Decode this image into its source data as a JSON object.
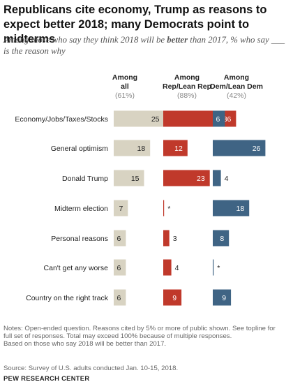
{
  "title": "Republicans cite economy, Trump as reasons to expect better 2018; many Democrats point to midterms",
  "subtitle": {
    "before": "Among those who say they think 2018 will be ",
    "emphasis": "better",
    "after": " than 2017, % who say ___ is the reason why"
  },
  "colors": {
    "all": "#d8d3c2",
    "rep": "#c0392b",
    "dem": "#3f6484"
  },
  "chart_data": {
    "type": "bar",
    "orientation": "horizontal",
    "categories": [
      "Economy/Jobs/Taxes/Stocks",
      "General optimism",
      "Donald Trump",
      "Midterm election",
      "Personal reasons",
      "Can't get any worse",
      "Country on the right track"
    ],
    "series": [
      {
        "name": "Among all",
        "header": [
          "Among",
          "all"
        ],
        "sub": "(61%)",
        "values": [
          25,
          18,
          15,
          7,
          6,
          6,
          6
        ],
        "labels": [
          "25",
          "18",
          "15",
          "7",
          "6",
          "6",
          "6"
        ]
      },
      {
        "name": "Among Rep/Lean Rep",
        "header": [
          "Among",
          "Rep/Lean Rep"
        ],
        "sub": "(88%)",
        "values": [
          36,
          12,
          23,
          0.4,
          3,
          4,
          9
        ],
        "labels": [
          "36",
          "12",
          "23",
          "*",
          "3",
          "4",
          "9"
        ]
      },
      {
        "name": "Among Dem/Lean Dem",
        "header": [
          "Among",
          "Dem/Lean Dem"
        ],
        "sub": "(42%)",
        "values": [
          6,
          26,
          4,
          18,
          8,
          0.4,
          9
        ],
        "labels": [
          "6",
          "26",
          "4",
          "18",
          "8",
          "*",
          "9"
        ]
      }
    ]
  },
  "notes": [
    "Notes: Open-ended question. Reasons cited by 5% or more of public shown. See topline for",
    "full set of responses. Total may exceed 100% because of multiple responses.",
    "Based on those who say 2018 will be better than 2017."
  ],
  "source": "Source: Survey of U.S. adults conducted Jan. 10-15, 2018.",
  "brand": "PEW RESEARCH CENTER"
}
